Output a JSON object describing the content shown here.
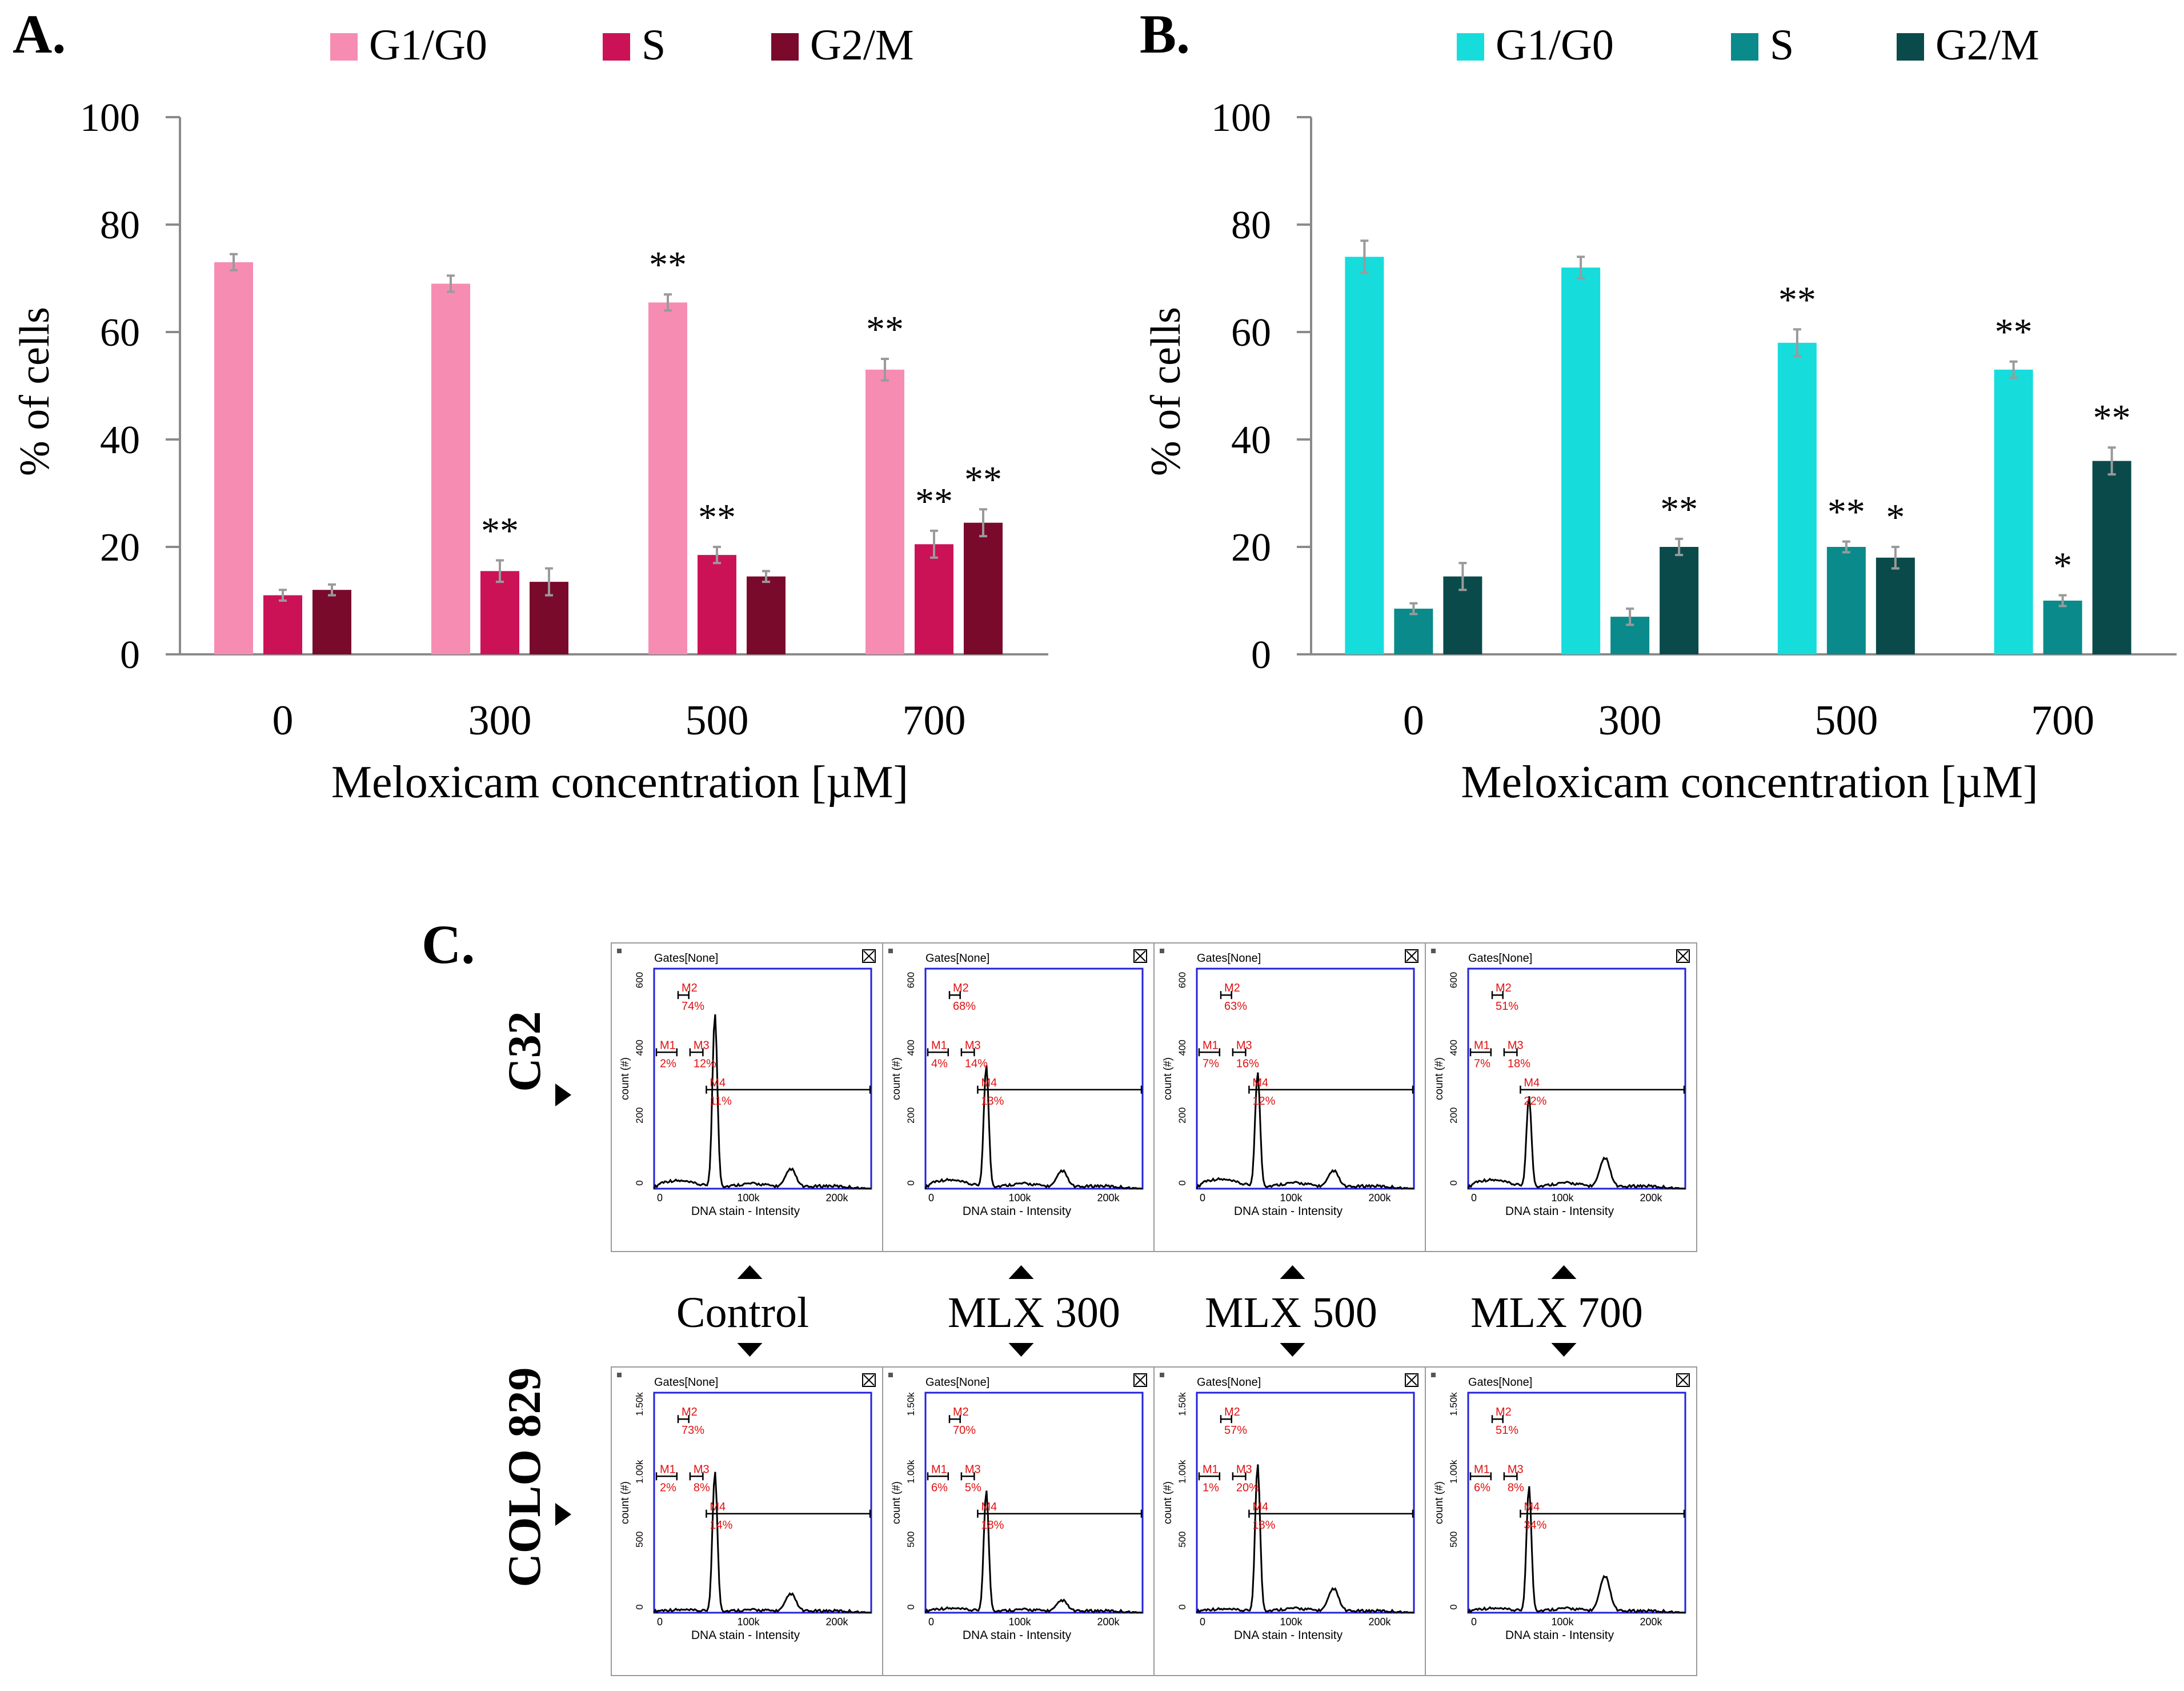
{
  "panels": {
    "A": {
      "label": "A."
    },
    "B": {
      "label": "B."
    },
    "C": {
      "label": "C."
    }
  },
  "chart_data": [
    {
      "id": "A",
      "type": "bar",
      "title": "",
      "xlabel": "Meloxicam concentration [µM]",
      "ylabel": "% of cells",
      "ylim": [
        0,
        100
      ],
      "yticks": [
        "0",
        "20",
        "40",
        "60",
        "80",
        "100"
      ],
      "categories": [
        "0",
        "300",
        "500",
        "700"
      ],
      "series": [
        {
          "name": "G1/G0",
          "color": "#f78cb3",
          "values": [
            73,
            69,
            65.5,
            53
          ],
          "errors": [
            1.5,
            1.5,
            1.5,
            2
          ],
          "sig": [
            "",
            "",
            "**",
            "**"
          ]
        },
        {
          "name": "S",
          "color": "#cc1257",
          "values": [
            11,
            15.5,
            18.5,
            20.5
          ],
          "errors": [
            1,
            2,
            1.5,
            2.5
          ],
          "sig": [
            "",
            "**",
            "**",
            "**"
          ]
        },
        {
          "name": "G2/M",
          "color": "#7a0a2c",
          "values": [
            12,
            13.5,
            14.5,
            24.5
          ],
          "errors": [
            1,
            2.5,
            1,
            2.5
          ],
          "sig": [
            "",
            "",
            "",
            "**"
          ]
        }
      ],
      "legend": "top"
    },
    {
      "id": "B",
      "type": "bar",
      "title": "",
      "xlabel": "Meloxicam concentration [µM]",
      "ylabel": "% of cells",
      "ylim": [
        0,
        100
      ],
      "yticks": [
        "0",
        "20",
        "40",
        "60",
        "80",
        "100"
      ],
      "categories": [
        "0",
        "300",
        "500",
        "700"
      ],
      "series": [
        {
          "name": "G1/G0",
          "color": "#17dcdc",
          "values": [
            74,
            72,
            58,
            53
          ],
          "errors": [
            3,
            2,
            2.5,
            1.5
          ],
          "sig": [
            "",
            "",
            "**",
            "**"
          ]
        },
        {
          "name": "S",
          "color": "#0a8a8a",
          "values": [
            8.5,
            7,
            20,
            10
          ],
          "errors": [
            1,
            1.5,
            1,
            1
          ],
          "sig": [
            "",
            "",
            "**",
            "*"
          ]
        },
        {
          "name": "G2/M",
          "color": "#0b4a4a",
          "values": [
            14.5,
            20,
            18,
            36
          ],
          "errors": [
            2.5,
            1.5,
            2,
            2.5
          ],
          "sig": [
            "",
            "**",
            "*",
            "**"
          ]
        }
      ],
      "legend": "top"
    }
  ],
  "flow": {
    "row_labels": [
      "C32",
      "COLO 829"
    ],
    "col_labels": [
      "Control",
      "MLX 300",
      "MLX 500",
      "MLX 700"
    ],
    "gates_label": "Gates[None]",
    "xlabel": "DNA stain - Intensity",
    "ylabel": "count (#)",
    "xticks": [
      "0",
      "100k",
      "200k"
    ],
    "rows": [
      {
        "yticks": [
          "0",
          "200",
          "400",
          "600"
        ],
        "ymax": 600,
        "plots": [
          {
            "gates": {
              "M1": "2%",
              "M2": "74%",
              "M3": "12%",
              "M4": "11%"
            },
            "peak": 470,
            "g2": 50,
            "sub": 18,
            "tail": 10
          },
          {
            "gates": {
              "M1": "4%",
              "M2": "68%",
              "M3": "14%",
              "M4": "13%"
            },
            "peak": 330,
            "g2": 45,
            "sub": 20,
            "tail": 10
          },
          {
            "gates": {
              "M1": "7%",
              "M2": "63%",
              "M3": "16%",
              "M4": "12%"
            },
            "peak": 310,
            "g2": 45,
            "sub": 22,
            "tail": 12
          },
          {
            "gates": {
              "M1": "7%",
              "M2": "51%",
              "M3": "18%",
              "M4": "22%"
            },
            "peak": 245,
            "g2": 80,
            "sub": 20,
            "tail": 12
          }
        ]
      },
      {
        "yticks": [
          "0",
          "500",
          "1.00k",
          "1.50k"
        ],
        "ymax": 1500,
        "plots": [
          {
            "gates": {
              "M1": "2%",
              "M2": "73%",
              "M3": "8%",
              "M4": "14%"
            },
            "peak": 950,
            "g2": 120,
            "sub": 10,
            "tail": 10
          },
          {
            "gates": {
              "M1": "6%",
              "M2": "70%",
              "M3": "5%",
              "M4": "18%"
            },
            "peak": 820,
            "g2": 75,
            "sub": 20,
            "tail": 12
          },
          {
            "gates": {
              "M1": "1%",
              "M2": "57%",
              "M3": "20%",
              "M4": "18%"
            },
            "peak": 1000,
            "g2": 155,
            "sub": 15,
            "tail": 20
          },
          {
            "gates": {
              "M1": "6%",
              "M2": "51%",
              "M3": "8%",
              "M4": "34%"
            },
            "peak": 850,
            "g2": 240,
            "sub": 20,
            "tail": 20
          }
        ]
      }
    ]
  }
}
